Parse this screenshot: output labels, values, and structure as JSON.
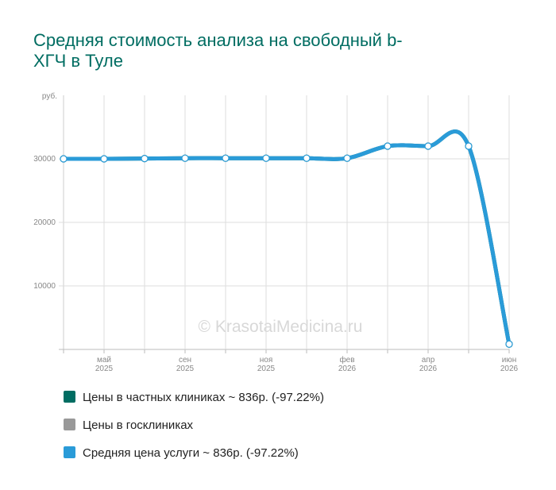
{
  "chart_data": {
    "type": "line",
    "title": "Средняя стоимость анализа на свободный b-ХГЧ в Туле",
    "y_label": "руб.",
    "watermark": "© KrasotaiMedicina.ru",
    "categories": [
      null,
      "май 2025",
      null,
      "сен 2025",
      null,
      "ноя 2025",
      null,
      "фев 2026",
      null,
      "апр 2026",
      null,
      "июн 2026"
    ],
    "ylim": [
      0,
      40000
    ],
    "yticks": [
      10000,
      20000,
      30000
    ],
    "grid": true,
    "series": [
      {
        "name": "Цены в частных клиниках ~ 836р. (-97.22%)",
        "color": "#006d62",
        "values": [
          30000,
          30000,
          30050,
          30100,
          30100,
          30100,
          30100,
          30100,
          32000,
          32000,
          32000,
          836
        ]
      },
      {
        "name": "Цены в госклиниках",
        "color": "#999999",
        "values": [
          null,
          null,
          null,
          null,
          null,
          null,
          null,
          null,
          null,
          null,
          null,
          null
        ]
      },
      {
        "name": "Средняя цена услуги ~ 836р. (-97.22%)",
        "color": "#2a9bd8",
        "values": [
          30000,
          30000,
          30050,
          30100,
          30100,
          30100,
          30100,
          30100,
          32000,
          32000,
          32000,
          836
        ]
      }
    ]
  }
}
